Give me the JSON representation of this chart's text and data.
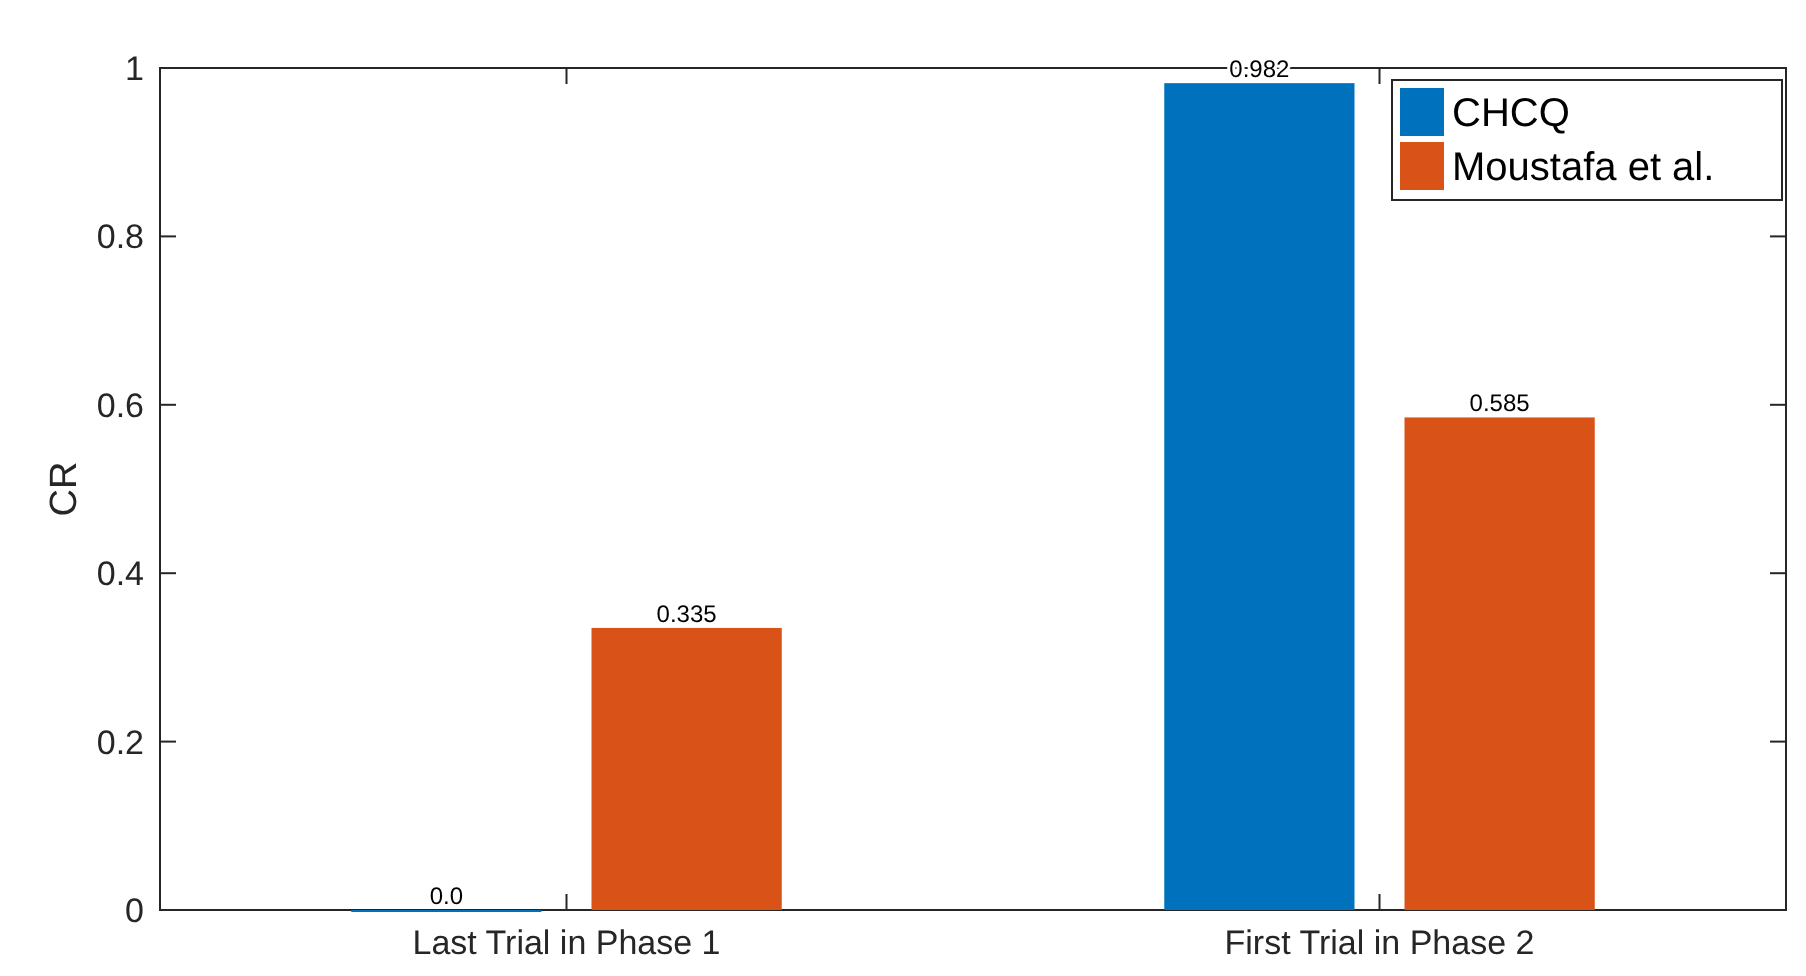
{
  "chart_data": {
    "type": "bar",
    "ylabel": "CR",
    "categories": [
      "Last Trial in Phase 1",
      "First Trial in Phase 2"
    ],
    "series": [
      {
        "name": "CHCQ",
        "color": "#0072bd",
        "values": [
          0,
          0.982
        ],
        "value_labels": [
          "0.0",
          "0.982"
        ]
      },
      {
        "name": "Moustafa et al.",
        "color": "#d95319",
        "values": [
          0.335,
          0.585
        ],
        "value_labels": [
          "0.335",
          "0.585"
        ]
      }
    ],
    "ylim": [
      0,
      1
    ],
    "yticks": [
      0,
      0.2,
      0.4,
      0.6,
      0.8,
      1
    ],
    "legend": "top right"
  }
}
